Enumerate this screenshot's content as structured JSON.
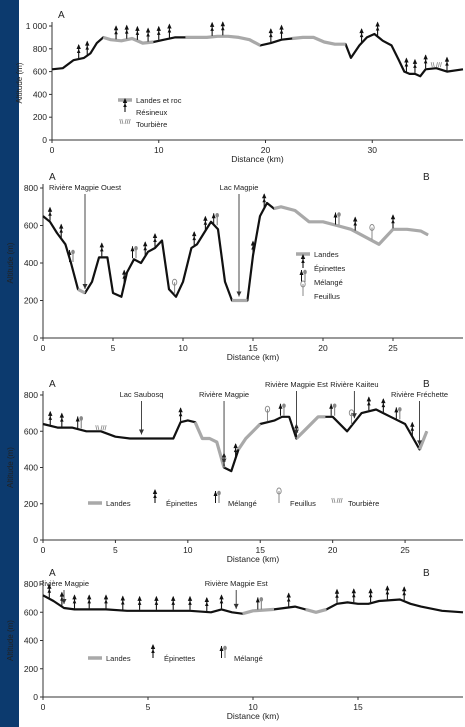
{
  "figure": {
    "side_bar_color": "#0c3a6e",
    "profile_color": "#111111",
    "barren_color": "#a9a9a9"
  },
  "chart_data": [
    {
      "type": "line",
      "panel_letter_left": "A",
      "panel_letter_right": "",
      "xlabel": "Distance (km)",
      "ylabel": "Altitude (m)",
      "xlim": [
        0,
        38.5
      ],
      "ylim": [
        0,
        1000
      ],
      "x_ticks": [
        0,
        10,
        20,
        30
      ],
      "y_ticks": [
        0,
        200,
        400,
        600,
        800,
        1000
      ],
      "y_tick_labels": [
        "0",
        "200",
        "400",
        "600",
        "800",
        "1 000"
      ],
      "series": [
        {
          "x": [
            0,
            1,
            2,
            3,
            3.6,
            4.2,
            4.8,
            5.5,
            6.5,
            7.5,
            8.5,
            9.5,
            10.5,
            11.5,
            12.5,
            13.5,
            14.5,
            15.5,
            16.5,
            17.5,
            18.5,
            19.5,
            20.5,
            21.5,
            22.5,
            23.5,
            24.5,
            25.5,
            26.5,
            27.5,
            28,
            28.8,
            29.5,
            30.2,
            31,
            31.8,
            32.5,
            33,
            33.5,
            34,
            34.5,
            35,
            36,
            37,
            38.5
          ],
          "y": [
            620,
            630,
            700,
            720,
            760,
            850,
            900,
            880,
            870,
            890,
            850,
            860,
            880,
            900,
            900,
            900,
            900,
            910,
            910,
            900,
            880,
            830,
            850,
            880,
            890,
            900,
            900,
            860,
            840,
            840,
            720,
            830,
            900,
            930,
            870,
            830,
            700,
            600,
            580,
            580,
            560,
            620,
            630,
            600,
            620
          ]
        }
      ],
      "barren_segments": [
        [
          4.8,
          9.5
        ],
        [
          12.5,
          19.5
        ],
        [
          22.5,
          27.5
        ]
      ],
      "vegetation_markers": [
        {
          "x": 2.5,
          "type": "conifer"
        },
        {
          "x": 3.3,
          "type": "conifer"
        },
        {
          "x": 6,
          "type": "conifer"
        },
        {
          "x": 7,
          "type": "conifer"
        },
        {
          "x": 8,
          "type": "conifer"
        },
        {
          "x": 9,
          "type": "conifer"
        },
        {
          "x": 10,
          "type": "conifer"
        },
        {
          "x": 11,
          "type": "conifer"
        },
        {
          "x": 15,
          "type": "conifer"
        },
        {
          "x": 16,
          "type": "conifer"
        },
        {
          "x": 20.5,
          "type": "conifer"
        },
        {
          "x": 21.5,
          "type": "conifer"
        },
        {
          "x": 29,
          "type": "conifer"
        },
        {
          "x": 30.5,
          "type": "conifer"
        },
        {
          "x": 33.2,
          "type": "conifer"
        },
        {
          "x": 34,
          "type": "conifer"
        },
        {
          "x": 35,
          "type": "conifer"
        },
        {
          "x": 36,
          "type": "peat"
        },
        {
          "x": 37,
          "type": "conifer"
        }
      ],
      "legend": [
        {
          "key": "barren",
          "label": "Landes et roc"
        },
        {
          "key": "conifer",
          "label": "Résineux"
        },
        {
          "key": "peat",
          "label": "Tourbière"
        }
      ],
      "legend_position": "bottom-left",
      "annotations": []
    },
    {
      "type": "line",
      "panel_letter_left": "A",
      "panel_letter_right": "B",
      "xlabel": "Distance (km)",
      "ylabel": "Altitude (m)",
      "xlim": [
        0,
        30
      ],
      "ylim": [
        0,
        800
      ],
      "x_ticks": [
        0,
        5,
        10,
        15,
        20,
        25
      ],
      "y_ticks": [
        0,
        200,
        400,
        600,
        800
      ],
      "y_tick_labels": [
        "0",
        "200",
        "400",
        "600",
        "800"
      ],
      "series": [
        {
          "x": [
            0,
            0.5,
            1,
            1.6,
            2,
            2.5,
            3,
            3.5,
            4,
            4.6,
            5,
            5.6,
            6,
            6.5,
            7,
            7.5,
            8,
            8.5,
            9,
            9.5,
            10,
            10.6,
            11,
            11.5,
            12,
            12.5,
            13,
            13.5,
            14,
            14.6,
            15,
            15.5,
            16,
            16.5,
            17,
            18,
            19,
            20,
            21,
            22,
            23,
            24,
            25,
            26,
            27,
            27.5
          ],
          "y": [
            650,
            620,
            560,
            500,
            400,
            260,
            240,
            300,
            430,
            430,
            240,
            220,
            350,
            420,
            400,
            460,
            480,
            520,
            260,
            220,
            300,
            480,
            500,
            560,
            620,
            580,
            300,
            200,
            200,
            200,
            440,
            650,
            720,
            690,
            700,
            680,
            620,
            620,
            600,
            580,
            540,
            500,
            580,
            580,
            570,
            550
          ]
        }
      ],
      "barren_segments": [
        [
          2.5,
          3
        ],
        [
          13.5,
          14.6
        ],
        [
          16.5,
          27.5
        ]
      ],
      "vegetation_markers": [
        {
          "x": 0.5,
          "type": "spruce"
        },
        {
          "x": 1.3,
          "type": "spruce"
        },
        {
          "x": 2,
          "type": "mixed"
        },
        {
          "x": 4.2,
          "type": "spruce"
        },
        {
          "x": 5.8,
          "type": "spruce"
        },
        {
          "x": 6.5,
          "type": "mixed"
        },
        {
          "x": 7.3,
          "type": "spruce"
        },
        {
          "x": 8,
          "type": "spruce"
        },
        {
          "x": 9.4,
          "type": "hardwood"
        },
        {
          "x": 10.8,
          "type": "spruce"
        },
        {
          "x": 11.6,
          "type": "spruce"
        },
        {
          "x": 12.3,
          "type": "mixed"
        },
        {
          "x": 15,
          "type": "spruce"
        },
        {
          "x": 15.8,
          "type": "spruce"
        },
        {
          "x": 21,
          "type": "mixed"
        },
        {
          "x": 22.3,
          "type": "spruce"
        },
        {
          "x": 23.5,
          "type": "hardwood"
        },
        {
          "x": 25,
          "type": "spruce"
        }
      ],
      "legend": [
        {
          "key": "barren",
          "label": "Landes"
        },
        {
          "key": "spruce",
          "label": "Épinettes"
        },
        {
          "key": "mixed",
          "label": "Mélangé"
        },
        {
          "key": "hardwood",
          "label": "Feuillus"
        }
      ],
      "legend_position": "center-right",
      "annotations": [
        {
          "label": "Rivière Magpie Ouest",
          "x": 3
        },
        {
          "label": "Lac Magpie",
          "x": 14
        }
      ]
    },
    {
      "type": "line",
      "panel_letter_left": "A",
      "panel_letter_right": "B",
      "xlabel": "Distance (km)",
      "ylabel": "Altitude (m)",
      "xlim": [
        0,
        29
      ],
      "ylim": [
        0,
        800
      ],
      "x_ticks": [
        0,
        5,
        10,
        15,
        20,
        25
      ],
      "y_ticks": [
        0,
        200,
        400,
        600,
        800
      ],
      "y_tick_labels": [
        "0",
        "200",
        "400",
        "600",
        "800"
      ],
      "series": [
        {
          "x": [
            0,
            1,
            2,
            3,
            4,
            5,
            6,
            7,
            8,
            9,
            9.5,
            10,
            10.5,
            11,
            11.5,
            12,
            12.5,
            13,
            13.5,
            14,
            15,
            16,
            16.5,
            17,
            17.5,
            18,
            19,
            20,
            21,
            22,
            23,
            24,
            25,
            26,
            26.5
          ],
          "y": [
            640,
            620,
            620,
            600,
            600,
            570,
            560,
            560,
            560,
            560,
            650,
            660,
            650,
            560,
            560,
            540,
            400,
            380,
            500,
            560,
            640,
            660,
            680,
            680,
            560,
            600,
            680,
            680,
            600,
            700,
            720,
            680,
            640,
            500,
            600
          ]
        }
      ],
      "barren_segments": [
        [
          10.5,
          12.5
        ],
        [
          13.5,
          15
        ],
        [
          17.5,
          19.5
        ],
        [
          26,
          26.5
        ]
      ],
      "vegetation_markers": [
        {
          "x": 0.5,
          "type": "spruce"
        },
        {
          "x": 1.3,
          "type": "spruce"
        },
        {
          "x": 2.5,
          "type": "mixed"
        },
        {
          "x": 4,
          "type": "peat"
        },
        {
          "x": 9.5,
          "type": "spruce"
        },
        {
          "x": 12.5,
          "type": "spruce"
        },
        {
          "x": 13.3,
          "type": "spruce"
        },
        {
          "x": 15.5,
          "type": "hardwood"
        },
        {
          "x": 16.5,
          "type": "mixed"
        },
        {
          "x": 17.5,
          "type": "spruce"
        },
        {
          "x": 20,
          "type": "mixed"
        },
        {
          "x": 21.3,
          "type": "hardwood"
        },
        {
          "x": 22.5,
          "type": "spruce"
        },
        {
          "x": 23.5,
          "type": "spruce"
        },
        {
          "x": 24.5,
          "type": "mixed"
        },
        {
          "x": 25.5,
          "type": "spruce"
        }
      ],
      "legend": [
        {
          "key": "barren",
          "label": "Landes"
        },
        {
          "key": "spruce",
          "label": "Épinettes"
        },
        {
          "key": "mixed",
          "label": "Mélangé"
        },
        {
          "key": "hardwood",
          "label": "Feuillus"
        },
        {
          "key": "peat",
          "label": "Tourbière"
        }
      ],
      "legend_position": "bottom",
      "annotations": [
        {
          "label": "Lac Saubosq",
          "x": 6.8
        },
        {
          "label": "Rivière Magpie",
          "x": 12.5
        },
        {
          "label": "Rivière Magpie Est",
          "x": 17.5
        },
        {
          "label": "Rivière Kaiiteu",
          "x": 21.5
        },
        {
          "label": "Rivière Fréchette",
          "x": 26
        }
      ]
    },
    {
      "type": "line",
      "panel_letter_left": "A",
      "panel_letter_right": "B",
      "xlabel": "Distance (km)",
      "ylabel": "Altitude (m)",
      "xlim": [
        0,
        20
      ],
      "ylim": [
        0,
        800
      ],
      "x_ticks": [
        0,
        5,
        10,
        15
      ],
      "y_ticks": [
        0,
        200,
        400,
        600,
        800
      ],
      "y_tick_labels": [
        "0",
        "200",
        "400",
        "600",
        "800"
      ],
      "series": [
        {
          "x": [
            0,
            0.5,
            1,
            1.5,
            2,
            3,
            4,
            5,
            6,
            7,
            8,
            8.5,
            9,
            9.5,
            10,
            11,
            12,
            12.5,
            13,
            13.5,
            14,
            14.5,
            15,
            15.5,
            16,
            17,
            17.5,
            18,
            19,
            20
          ],
          "y": [
            720,
            680,
            630,
            620,
            620,
            620,
            610,
            610,
            610,
            610,
            600,
            620,
            600,
            590,
            610,
            620,
            640,
            620,
            600,
            620,
            660,
            670,
            660,
            660,
            680,
            690,
            660,
            640,
            610,
            600
          ]
        }
      ],
      "barren_segments": [
        [
          9.5,
          11
        ],
        [
          12.5,
          13.5
        ]
      ],
      "vegetation_markers": [
        {
          "x": 0.3,
          "type": "spruce"
        },
        {
          "x": 0.9,
          "type": "spruce"
        },
        {
          "x": 1.5,
          "type": "spruce"
        },
        {
          "x": 2.2,
          "type": "spruce"
        },
        {
          "x": 3,
          "type": "spruce"
        },
        {
          "x": 3.8,
          "type": "spruce"
        },
        {
          "x": 4.6,
          "type": "spruce"
        },
        {
          "x": 5.4,
          "type": "spruce"
        },
        {
          "x": 6.2,
          "type": "spruce"
        },
        {
          "x": 7,
          "type": "spruce"
        },
        {
          "x": 7.8,
          "type": "spruce"
        },
        {
          "x": 8.5,
          "type": "spruce"
        },
        {
          "x": 10.3,
          "type": "mixed"
        },
        {
          "x": 11.7,
          "type": "spruce"
        },
        {
          "x": 14,
          "type": "spruce"
        },
        {
          "x": 14.8,
          "type": "spruce"
        },
        {
          "x": 15.6,
          "type": "spruce"
        },
        {
          "x": 16.4,
          "type": "spruce"
        },
        {
          "x": 17.2,
          "type": "spruce"
        }
      ],
      "legend": [
        {
          "key": "barren",
          "label": "Landes"
        },
        {
          "key": "spruce",
          "label": "Épinettes"
        },
        {
          "key": "mixed",
          "label": "Mélangé"
        }
      ],
      "legend_position": "bottom-left",
      "annotations": [
        {
          "label": "Rivière Magpie",
          "x": 1
        },
        {
          "label": "Rivière Magpie Est",
          "x": 9.2
        }
      ]
    }
  ]
}
